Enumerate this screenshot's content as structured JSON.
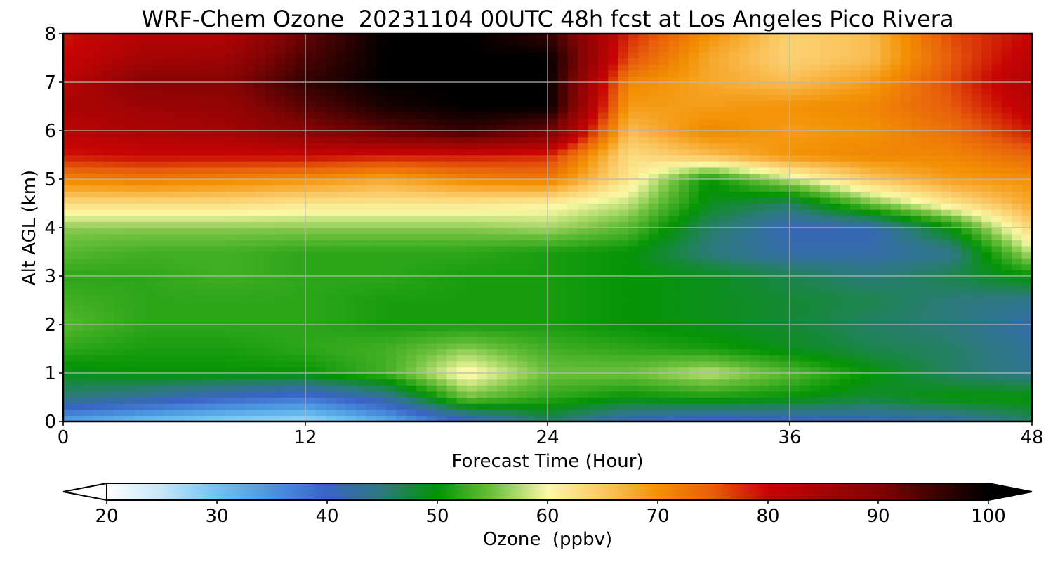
{
  "title": "WRF-Chem Ozone  20231104 00UTC 48h fcst at Los Angeles Pico Rivera",
  "chart_data": {
    "type": "heatmap",
    "title": "WRF-Chem Ozone  20231104 00UTC 48h fcst at Los Angeles Pico Rivera",
    "xlabel": "Forecast Time (Hour)",
    "ylabel": "Alt AGL (km)",
    "xlim": [
      0,
      48
    ],
    "ylim": [
      0,
      8
    ],
    "x_ticks": [
      0,
      12,
      24,
      36,
      48
    ],
    "y_ticks": [
      0,
      1,
      2,
      3,
      4,
      5,
      6,
      7,
      8
    ],
    "grid": true,
    "x_hours": [
      0,
      4,
      8,
      12,
      16,
      20,
      24,
      28,
      32,
      36,
      40,
      44,
      48
    ],
    "y_km": [
      0,
      0.5,
      1,
      1.5,
      2,
      2.5,
      3,
      3.5,
      4,
      4.5,
      5,
      5.5,
      6,
      6.5,
      7,
      7.5,
      8
    ],
    "z_ppbv": [
      [
        33,
        30,
        28,
        27,
        32,
        40,
        46,
        41,
        39,
        40,
        41,
        42,
        46
      ],
      [
        45,
        43,
        40,
        38,
        43,
        55,
        52,
        50,
        51,
        50,
        48,
        50,
        50
      ],
      [
        49,
        50,
        50,
        50,
        53,
        61,
        55,
        55,
        58,
        54,
        50,
        46,
        44
      ],
      [
        52,
        51,
        51,
        52,
        53,
        56,
        53,
        52,
        51,
        49,
        47,
        46,
        43
      ],
      [
        54,
        52,
        52,
        52,
        51,
        51,
        51,
        50,
        49,
        48,
        46,
        45,
        42
      ],
      [
        53,
        52,
        52,
        52,
        51,
        51,
        51,
        50,
        49,
        48,
        47,
        45,
        44
      ],
      [
        52,
        52,
        53,
        52,
        52,
        51,
        51,
        50,
        49,
        47,
        45,
        47,
        50
      ],
      [
        54,
        53,
        53,
        52,
        52,
        52,
        51,
        50,
        45,
        42,
        42,
        44,
        58
      ],
      [
        56,
        56,
        56,
        56,
        56,
        56,
        57,
        54,
        46,
        41,
        41,
        50,
        64
      ],
      [
        63,
        63,
        63,
        62,
        62,
        62,
        61,
        58,
        49,
        46,
        55,
        62,
        68
      ],
      [
        71,
        72,
        71,
        70,
        68,
        71,
        72,
        62,
        50,
        58,
        65,
        69,
        70
      ],
      [
        79,
        80,
        80,
        80,
        79,
        79,
        78,
        63,
        66,
        70,
        71,
        71,
        74
      ],
      [
        82,
        84,
        85,
        89,
        93,
        96,
        92,
        66,
        71,
        69,
        70,
        73,
        79
      ],
      [
        84,
        86,
        87,
        93,
        98,
        100,
        100,
        69,
        69,
        70,
        71,
        75,
        82
      ],
      [
        82,
        89,
        89,
        96,
        100,
        100,
        100,
        71,
        68,
        66,
        69,
        76,
        84
      ],
      [
        80,
        85,
        86,
        94,
        100,
        100,
        100,
        76,
        68,
        64,
        66,
        75,
        82
      ],
      [
        79,
        83,
        83,
        92,
        100,
        100,
        96,
        78,
        70,
        64,
        66,
        76,
        80
      ]
    ],
    "colorbar": {
      "label": "Ozone  (ppbv)",
      "min": 20,
      "max": 100,
      "ticks": [
        20,
        30,
        40,
        50,
        60,
        70,
        80,
        90,
        100
      ],
      "extend": "both",
      "stops": [
        {
          "v": 20,
          "c": "#ffffff"
        },
        {
          "v": 25,
          "c": "#c6e6f8"
        },
        {
          "v": 30,
          "c": "#6ec3f2"
        },
        {
          "v": 35,
          "c": "#4a93de"
        },
        {
          "v": 40,
          "c": "#3a63c6"
        },
        {
          "v": 45,
          "c": "#2c7a7c"
        },
        {
          "v": 50,
          "c": "#049404"
        },
        {
          "v": 55,
          "c": "#6cc03c"
        },
        {
          "v": 60,
          "c": "#fbf9a6"
        },
        {
          "v": 65,
          "c": "#fbc865"
        },
        {
          "v": 70,
          "c": "#f39104"
        },
        {
          "v": 75,
          "c": "#e75c0c"
        },
        {
          "v": 80,
          "c": "#c80404"
        },
        {
          "v": 90,
          "c": "#800404"
        },
        {
          "v": 100,
          "c": "#000000"
        }
      ]
    }
  }
}
